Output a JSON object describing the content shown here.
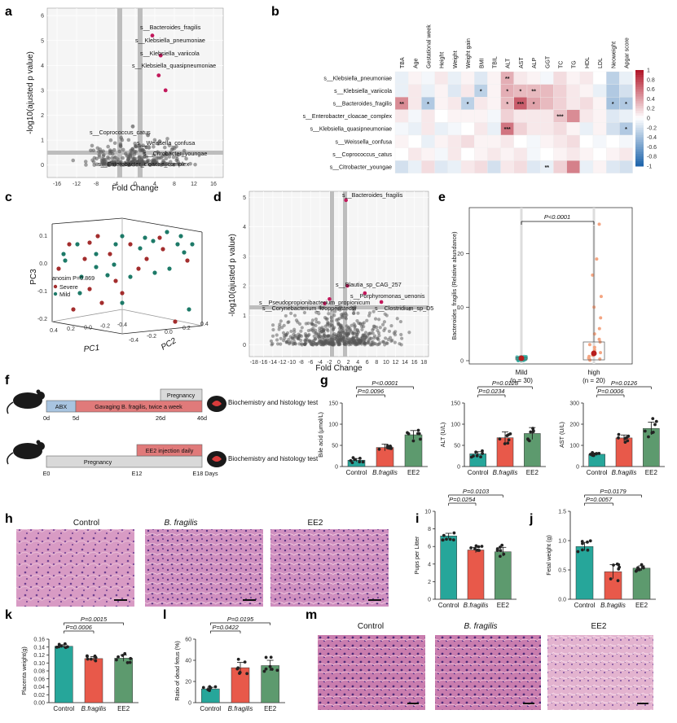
{
  "panel_letters": [
    "a",
    "b",
    "c",
    "d",
    "e",
    "f",
    "g",
    "h",
    "i",
    "j",
    "k",
    "l",
    "m"
  ],
  "icons": {
    "mouse": "mouse-icon",
    "organ": "liver-organ-icon"
  },
  "colors": {
    "control": "#26a69a",
    "bfragilis": "#e8594a",
    "ee2": "#5d9a6e",
    "severe": "#a32d2d",
    "mild": "#1d7a68",
    "neg": "#2166ac",
    "pos": "#b2182b"
  },
  "panel_a": {
    "ylabel": "-log10(ajusted p value)",
    "xlabel": "Fold Change",
    "xticks": [
      "-16",
      "-12",
      "-8",
      "-4",
      "0",
      "4",
      "8",
      "12",
      "16"
    ],
    "yticks": [
      "0",
      "1",
      "2",
      "3",
      "4",
      "5",
      "6"
    ],
    "labels": [
      "s__Bacteroides_fragilis",
      "s__Klebsiella_pneumoniae",
      "s__Klebsiella_variicola",
      "s__Klebsiella_quasipneumoniae",
      "s__Coprococcus_catus",
      "s__Weissella_confusa",
      "s__Citrobacter_youngae",
      "s__Enterobacter_cloacae_complex"
    ]
  },
  "panel_b": {
    "chart_data": {
      "type": "heatmap",
      "columns": [
        "TBA",
        "Age",
        "Gestational week",
        "Height",
        "Weight",
        "Weight gain",
        "BMI",
        "TBIL",
        "ALT",
        "AST",
        "ALP",
        "GGT",
        "TC",
        "TG",
        "HDL",
        "LDL",
        "Neoweight",
        "Apgar score"
      ],
      "rows": [
        "s__Klebsiella_pneumoniae",
        "s__Klebsiella_variicola",
        "s__Bacteroides_fragilis",
        "s__Enterobacter_cloacae_complex",
        "s__Klebsiella_quasipneumoniae",
        "s__Weissella_confusa",
        "s__Coprococcus_catus",
        "s__Citrobacter_youngae"
      ],
      "values": [
        [
          -0.1,
          0.05,
          -0.05,
          0.1,
          -0.1,
          0.05,
          -0.15,
          0.05,
          0.35,
          0.1,
          0.05,
          -0.05,
          0.15,
          0.05,
          0.1,
          0.0,
          -0.3,
          -0.1
        ],
        [
          -0.1,
          0.1,
          -0.1,
          0.05,
          -0.15,
          0.1,
          -0.3,
          0.05,
          0.35,
          0.3,
          0.3,
          0.3,
          0.2,
          0.1,
          0.05,
          -0.1,
          -0.35,
          -0.2
        ],
        [
          0.5,
          0.1,
          -0.35,
          0.05,
          0.1,
          -0.3,
          0.1,
          0.05,
          0.3,
          0.7,
          0.4,
          0.3,
          0.2,
          0.1,
          0.15,
          0.05,
          -0.4,
          -0.35
        ],
        [
          0.1,
          -0.05,
          0.1,
          0.0,
          0.05,
          0.05,
          0.05,
          -0.05,
          0.2,
          0.1,
          0.1,
          0.1,
          0.25,
          0.5,
          0.1,
          0.05,
          -0.15,
          -0.1
        ],
        [
          -0.05,
          -0.1,
          0.1,
          -0.1,
          -0.05,
          0.0,
          0.1,
          -0.1,
          0.6,
          0.2,
          0.1,
          0.1,
          0.15,
          0.05,
          -0.1,
          0.05,
          -0.2,
          -0.35
        ],
        [
          0.05,
          0.0,
          -0.1,
          0.05,
          0.1,
          0.15,
          0.05,
          0.05,
          0.1,
          0.0,
          -0.05,
          0.05,
          0.1,
          0.15,
          0.0,
          -0.05,
          0.0,
          -0.05
        ],
        [
          0.0,
          0.1,
          0.05,
          -0.05,
          0.1,
          0.0,
          0.05,
          0.1,
          0.05,
          0.1,
          -0.05,
          0.0,
          0.05,
          0.1,
          0.05,
          0.0,
          0.05,
          0.1
        ],
        [
          -0.2,
          -0.1,
          0.15,
          -0.15,
          -0.1,
          0.1,
          0.15,
          -0.2,
          0.1,
          0.15,
          -0.15,
          -0.1,
          0.2,
          0.55,
          -0.1,
          0.05,
          -0.15,
          -0.2
        ]
      ],
      "stars": [
        [
          null,
          null,
          null,
          null,
          null,
          null,
          null,
          null,
          "**",
          null,
          null,
          null,
          null,
          null,
          null,
          null,
          null,
          null
        ],
        [
          null,
          null,
          null,
          null,
          null,
          null,
          "*",
          null,
          "*",
          "*",
          "**",
          null,
          null,
          null,
          null,
          null,
          null,
          null
        ],
        [
          "**",
          null,
          "*",
          null,
          null,
          "*",
          null,
          null,
          "*",
          "***",
          "*",
          null,
          null,
          null,
          null,
          null,
          "*",
          "*"
        ],
        [
          null,
          null,
          null,
          null,
          null,
          null,
          null,
          null,
          null,
          null,
          null,
          null,
          "***",
          null,
          null,
          null,
          null,
          null
        ],
        [
          null,
          null,
          null,
          null,
          null,
          null,
          null,
          null,
          "***",
          null,
          null,
          null,
          null,
          null,
          null,
          null,
          null,
          "*"
        ],
        [
          null,
          null,
          null,
          null,
          null,
          null,
          null,
          null,
          null,
          null,
          null,
          null,
          null,
          null,
          null,
          null,
          null,
          null
        ],
        [
          null,
          null,
          null,
          null,
          null,
          null,
          null,
          null,
          null,
          null,
          null,
          null,
          null,
          null,
          null,
          null,
          null,
          null
        ],
        [
          null,
          null,
          null,
          null,
          null,
          null,
          null,
          null,
          null,
          null,
          null,
          "**",
          null,
          null,
          null,
          null,
          null,
          null
        ]
      ],
      "scale_ticks": [
        "1",
        "0.8",
        "0.6",
        "0.4",
        "0.2",
        "0",
        "-0.2",
        "-0.4",
        "-0.6",
        "-0.8",
        "-1"
      ],
      "range": [
        -1,
        1
      ]
    }
  },
  "panel_c": {
    "ylabel": "PC3",
    "xlabel1": "PC1",
    "xlabel2": "PC2",
    "legend_title": "anosim P=0.869",
    "legend": [
      "Severe",
      "Mild"
    ],
    "yticks": [
      "0.1",
      "0.0",
      "-0.1",
      "-0.2"
    ],
    "x1ticks": [
      "0.4",
      "0.2",
      "0.0",
      "-0.2",
      "-0.4"
    ],
    "x2ticks": [
      "-0.4",
      "-0.2",
      "0.0",
      "0.2",
      "0.4"
    ]
  },
  "panel_d": {
    "ylabel": "-log10(ajusted p value)",
    "xlabel": "Fold Change",
    "xticks": [
      "-18",
      "-16",
      "-14",
      "-12",
      "-10",
      "-8",
      "-6",
      "-4",
      "-2",
      "0",
      "2",
      "4",
      "6",
      "8",
      "10",
      "12",
      "14",
      "16",
      "18"
    ],
    "yticks": [
      "0",
      "1",
      "2",
      "3",
      "4",
      "5"
    ],
    "labels": [
      "s__Bacteroides_fragilis",
      "s__Blautia_sp_CAG_257",
      "s__Porphyromonas_uenonis",
      "s__Pseudopropionibacterium_propionicum",
      "s__Corynebacterium_kroppenstedtii",
      "s__Clostridium_sp_D5"
    ]
  },
  "panel_e": {
    "ylabel": "Bacteroides_fragilis (Relative abundance)",
    "pvalue": "P<0.0001",
    "yticks": [
      "0",
      "10",
      "20"
    ],
    "groups": [
      {
        "name": "Mild",
        "n": "(n = 30)"
      },
      {
        "name": "high",
        "n": "(n = 20)"
      }
    ]
  },
  "panel_f": {
    "top": {
      "abx": "ABX",
      "gavage": "Gavaging B. fragilis, twice a week",
      "pregnancy": "Pregnancy",
      "days": [
        "0d",
        "5d",
        "26d",
        "46d"
      ],
      "outcome": "Biochemistry and histology test"
    },
    "bottom": {
      "pregnancy": "Pregnancy",
      "ee2": "EE2 injection daily",
      "days": [
        "E0",
        "E12",
        "E18 Days"
      ],
      "outcome": "Biochemistry and histology test"
    }
  },
  "panel_g": [
    {
      "ylabel": "Bile acid (μmol/L)",
      "yticks": [
        "0",
        "50",
        "100",
        "150"
      ],
      "ymax": 150,
      "p1": "P=0.0096",
      "p2": "P<0.0001",
      "categories": [
        "Control",
        "B.fragilis",
        "EE2"
      ],
      "values": [
        15,
        45,
        75
      ],
      "errors": [
        4,
        8,
        10
      ]
    },
    {
      "ylabel": "ALT (U/L)",
      "yticks": [
        "0",
        "50",
        "100",
        "150"
      ],
      "ymax": 150,
      "p1": "P=0.0234",
      "p2": "P=0.0128",
      "categories": [
        "Control",
        "B.fragilis",
        "EE2"
      ],
      "values": [
        30,
        68,
        78
      ],
      "errors": [
        5,
        14,
        14
      ]
    },
    {
      "ylabel": "AST (U/L)",
      "yticks": [
        "0",
        "100",
        "200",
        "300"
      ],
      "ymax": 300,
      "p1": "P=0.0006",
      "p2": "P=0.0126",
      "categories": [
        "Control",
        "B.fragilis",
        "EE2"
      ],
      "values": [
        58,
        135,
        180
      ],
      "errors": [
        6,
        14,
        30
      ]
    }
  ],
  "panel_h": {
    "titles": [
      "Control",
      "B. fragilis",
      "EE2"
    ]
  },
  "panel_i": {
    "ylabel": "Pups per Litter",
    "yticks": [
      "0",
      "2",
      "4",
      "6",
      "8",
      "10"
    ],
    "ymax": 10,
    "p1": "P=0.0254",
    "p2": "P=0.0103",
    "categories": [
      "Control",
      "B.fragilis",
      "EE2"
    ],
    "values": [
      7.2,
      5.6,
      5.4
    ],
    "errors": [
      0.3,
      0.3,
      0.5
    ]
  },
  "panel_j": {
    "ylabel": "Fetal weight (g)",
    "yticks": [
      "0.0",
      "0.5",
      "1.0",
      "1.5"
    ],
    "ymax": 1.5,
    "p1": "P=0.0057",
    "p2": "P=0.0179",
    "categories": [
      "Control",
      "B.fragilis",
      "EE2"
    ],
    "values": [
      0.9,
      0.47,
      0.53
    ],
    "errors": [
      0.07,
      0.12,
      0.04
    ]
  },
  "panel_k": {
    "ylabel": "Placenta weight(g)",
    "yticks": [
      "0.00",
      "0.02",
      "0.04",
      "0.06",
      "0.08",
      "0.10",
      "0.12",
      "0.14",
      "0.16"
    ],
    "ymax": 0.16,
    "p1": "P=0.0006",
    "p2": "P=0.0015",
    "categories": [
      "Control",
      "B.fragilis",
      "EE2"
    ],
    "values": [
      0.142,
      0.111,
      0.112
    ],
    "errors": [
      0.004,
      0.005,
      0.008
    ]
  },
  "panel_l": {
    "ylabel": "Ratio of dead fetus (%)",
    "yticks": [
      "0",
      "20",
      "40",
      "60"
    ],
    "ymax": 60,
    "p1": "P=0.0422",
    "p2": "P=0.0195",
    "categories": [
      "Control",
      "B.fragilis",
      "EE2"
    ],
    "values": [
      13,
      33,
      35
    ],
    "errors": [
      1.5,
      5,
      5
    ]
  },
  "panel_m": {
    "titles": [
      "Control",
      "B. fragilis",
      "EE2"
    ]
  }
}
